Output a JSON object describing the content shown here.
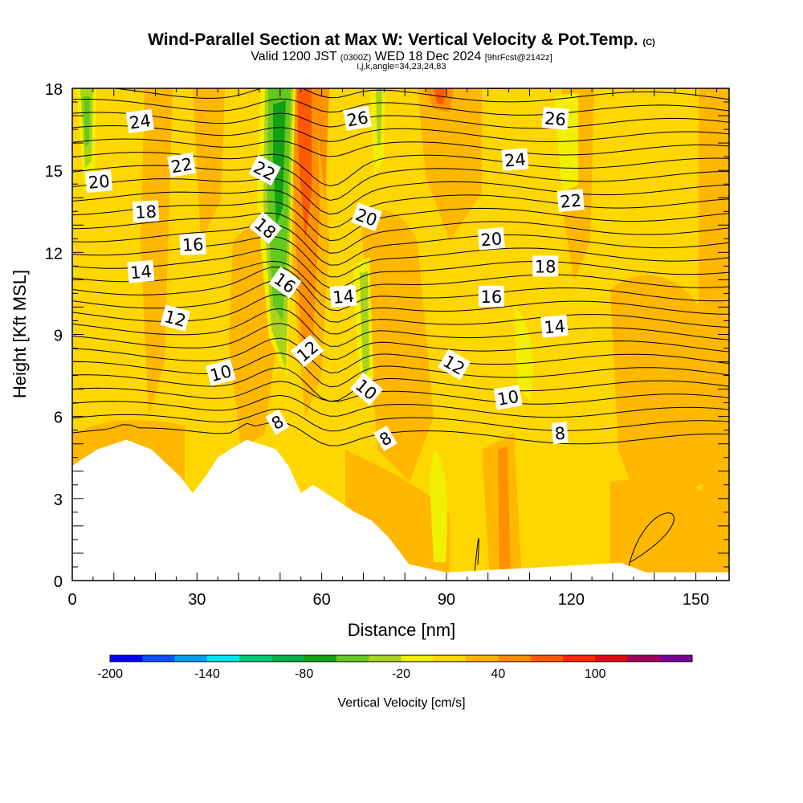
{
  "title": {
    "main": "Wind-Parallel Section at Max W: Vertical Velocity & Pot.Temp.",
    "main_unit": "(C)",
    "valid_a": "Valid 1200 JST",
    "valid_z": "(0300Z)",
    "valid_b": "WED 18 Dec 2024",
    "fcst": "[9hrFcst@2142z]",
    "indices": "i,j,k,angle=34,23,24,83"
  },
  "chart_data": {
    "type": "contour",
    "xlabel": "Distance [nm]",
    "ylabel": "Height [Kft MSL]",
    "xlim": [
      0,
      158
    ],
    "ylim": [
      0,
      18
    ],
    "x_ticks": [
      0,
      30,
      60,
      90,
      120,
      150
    ],
    "y_ticks": [
      0,
      3,
      6,
      9,
      12,
      15,
      18
    ],
    "colorbar": {
      "label": "Vertical Velocity [cm/s]",
      "tick_labels": [
        "-200",
        "-140",
        "-80",
        "-20",
        "40",
        "100"
      ],
      "levels": [
        -200,
        -180,
        -160,
        -140,
        -120,
        -100,
        -80,
        -60,
        -40,
        -20,
        0,
        20,
        40,
        60,
        80,
        100,
        120,
        140
      ],
      "colors": [
        "#0000f5",
        "#0a50f5",
        "#00a0f0",
        "#00e6f0",
        "#00c878",
        "#00b446",
        "#14a014",
        "#64c81e",
        "#aad21e",
        "#f0f000",
        "#ffd700",
        "#ffb400",
        "#ff8c00",
        "#ff5a00",
        "#ff2800",
        "#dc0a14",
        "#a0005a",
        "#780096"
      ]
    },
    "theta_contour_labels": [
      {
        "text": "24",
        "x": 16.3,
        "y": 16.8,
        "angle": -8
      },
      {
        "text": "22",
        "x": 26.3,
        "y": 15.2,
        "angle": -10
      },
      {
        "text": "20",
        "x": 6.4,
        "y": 14.6,
        "angle": -5
      },
      {
        "text": "18",
        "x": 17.7,
        "y": 13.5,
        "angle": -3
      },
      {
        "text": "16",
        "x": 29.0,
        "y": 12.3,
        "angle": -3
      },
      {
        "text": "14",
        "x": 16.5,
        "y": 11.3,
        "angle": -5
      },
      {
        "text": "12",
        "x": 24.8,
        "y": 9.6,
        "angle": 15
      },
      {
        "text": "10",
        "x": 35.7,
        "y": 7.6,
        "angle": -15
      },
      {
        "text": "8",
        "x": 49.3,
        "y": 5.8,
        "angle": -30
      },
      {
        "text": "22",
        "x": 46.3,
        "y": 15.0,
        "angle": 28
      },
      {
        "text": "18",
        "x": 46.5,
        "y": 12.9,
        "angle": 40
      },
      {
        "text": "16",
        "x": 51.2,
        "y": 10.9,
        "angle": 35
      },
      {
        "text": "12",
        "x": 56.5,
        "y": 8.4,
        "angle": -40
      },
      {
        "text": "26",
        "x": 68.6,
        "y": 16.9,
        "angle": -10
      },
      {
        "text": "20",
        "x": 70.8,
        "y": 13.3,
        "angle": 20
      },
      {
        "text": "14",
        "x": 65.2,
        "y": 10.4,
        "angle": -5
      },
      {
        "text": "10",
        "x": 70.8,
        "y": 7.0,
        "angle": 40
      },
      {
        "text": "8",
        "x": 75.3,
        "y": 5.2,
        "angle": -30
      },
      {
        "text": "12",
        "x": 91.9,
        "y": 7.9,
        "angle": 30
      },
      {
        "text": "26",
        "x": 116.2,
        "y": 16.9,
        "angle": 5
      },
      {
        "text": "24",
        "x": 106.5,
        "y": 15.4,
        "angle": -5
      },
      {
        "text": "22",
        "x": 119.9,
        "y": 13.9,
        "angle": -5
      },
      {
        "text": "20",
        "x": 100.8,
        "y": 12.5,
        "angle": -5
      },
      {
        "text": "18",
        "x": 113.8,
        "y": 11.5,
        "angle": 0
      },
      {
        "text": "16",
        "x": 100.8,
        "y": 10.4,
        "angle": 0
      },
      {
        "text": "14",
        "x": 116.0,
        "y": 9.3,
        "angle": -5
      },
      {
        "text": "10",
        "x": 104.8,
        "y": 6.7,
        "angle": -10
      },
      {
        "text": "8",
        "x": 117.3,
        "y": 5.4,
        "angle": -5
      }
    ],
    "terrain_top_kft": [
      {
        "x": 0,
        "y": 4.2
      },
      {
        "x": 3,
        "y": 4.5
      },
      {
        "x": 6,
        "y": 4.8
      },
      {
        "x": 13,
        "y": 5.15
      },
      {
        "x": 19,
        "y": 4.8
      },
      {
        "x": 26,
        "y": 3.8
      },
      {
        "x": 29,
        "y": 3.2
      },
      {
        "x": 32,
        "y": 3.8
      },
      {
        "x": 35,
        "y": 4.5
      },
      {
        "x": 38,
        "y": 4.8
      },
      {
        "x": 42,
        "y": 5.15
      },
      {
        "x": 49,
        "y": 4.8
      },
      {
        "x": 52,
        "y": 4.2
      },
      {
        "x": 55,
        "y": 3.2
      },
      {
        "x": 58,
        "y": 3.5
      },
      {
        "x": 64,
        "y": 2.9
      },
      {
        "x": 68,
        "y": 2.5
      },
      {
        "x": 72,
        "y": 2.2
      },
      {
        "x": 76,
        "y": 1.6
      },
      {
        "x": 81,
        "y": 0.6
      },
      {
        "x": 90,
        "y": 0.3
      },
      {
        "x": 132,
        "y": 0.65
      },
      {
        "x": 138,
        "y": 0.3
      },
      {
        "x": 158,
        "y": 0.3
      }
    ]
  }
}
